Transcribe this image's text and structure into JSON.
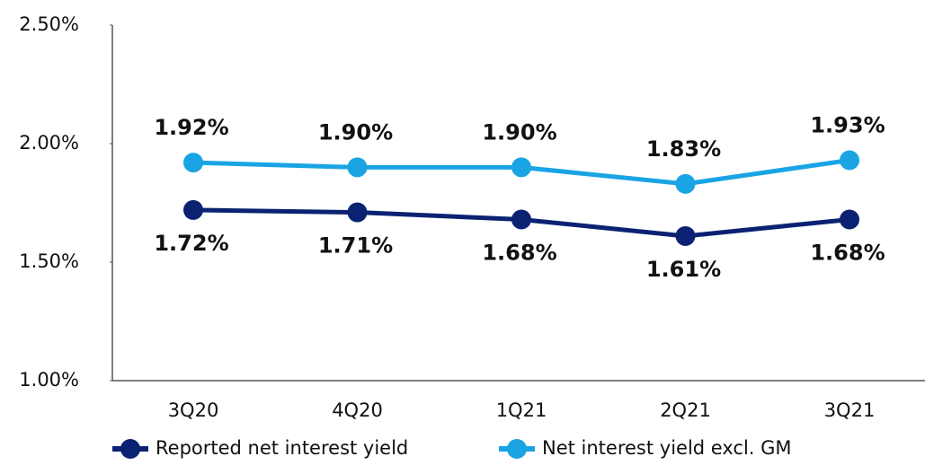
{
  "chart_data": {
    "type": "line",
    "categories": [
      "3Q20",
      "4Q20",
      "1Q21",
      "2Q21",
      "3Q21"
    ],
    "series": [
      {
        "name": "Reported net interest yield",
        "color": "#0b2272",
        "values": [
          1.72,
          1.71,
          1.68,
          1.61,
          1.68
        ],
        "value_labels": [
          "1.72%",
          "1.71%",
          "1.68%",
          "1.61%",
          "1.68%"
        ],
        "label_position": "below"
      },
      {
        "name": "Net interest yield excl. GM",
        "color": "#1aa4e4",
        "values": [
          1.92,
          1.9,
          1.9,
          1.83,
          1.93
        ],
        "value_labels": [
          "1.92%",
          "1.90%",
          "1.90%",
          "1.83%",
          "1.93%"
        ],
        "label_position": "above"
      }
    ],
    "ylim": [
      1.0,
      2.5
    ],
    "yticks": [
      {
        "value": 1.0,
        "label": "1.00%"
      },
      {
        "value": 1.5,
        "label": "1.50%"
      },
      {
        "value": 2.0,
        "label": "2.00%"
      },
      {
        "value": 2.5,
        "label": "2.50%"
      }
    ],
    "grid": false,
    "legend": "bottom"
  }
}
